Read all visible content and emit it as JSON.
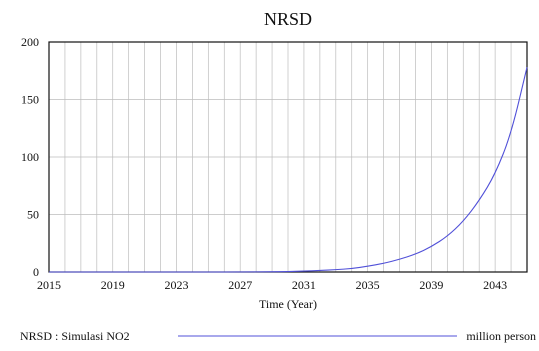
{
  "chart_data": {
    "type": "line",
    "title": "NRSD",
    "xlabel": "Time (Year)",
    "ylabel": "",
    "xlim": [
      2015,
      2045
    ],
    "ylim": [
      0,
      200
    ],
    "x_ticks": [
      2015,
      2019,
      2023,
      2027,
      2031,
      2035,
      2039,
      2043
    ],
    "y_ticks": [
      0,
      50,
      100,
      150,
      200
    ],
    "grid": true,
    "legend_position": "bottom",
    "series": [
      {
        "name": "NRSD : Simulasi NO2",
        "unit": "million person",
        "color": "#5050d8",
        "x": [
          2015,
          2017,
          2019,
          2021,
          2023,
          2025,
          2027,
          2029,
          2030,
          2031,
          2032,
          2033,
          2034,
          2035,
          2036,
          2037,
          2038,
          2039,
          2040,
          2041,
          2042,
          2043,
          2044,
          2045
        ],
        "values": [
          0,
          0,
          0,
          0,
          0,
          0,
          0,
          0.2,
          0.4,
          0.8,
          1.3,
          2,
          3,
          5,
          7.5,
          11,
          15.5,
          22,
          31,
          44,
          62,
          85,
          120,
          178
        ]
      }
    ]
  }
}
